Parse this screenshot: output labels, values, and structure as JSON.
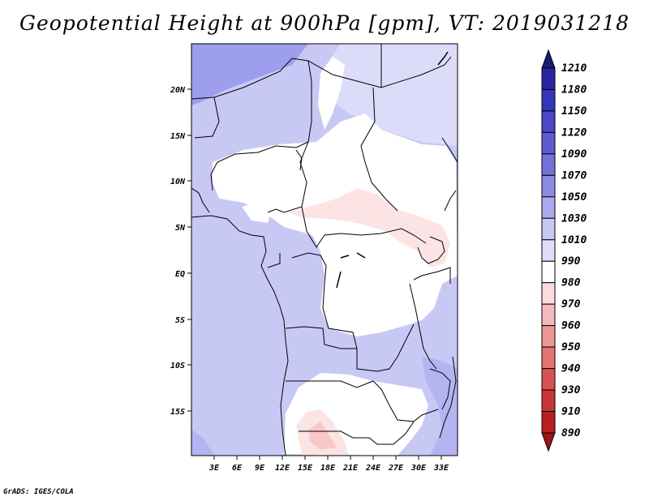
{
  "title": "Geopotential Height at 900hPa [gpm], VT: 2019031218",
  "credit": "GrADS: IGES/COLA",
  "map": {
    "lat_labels": [
      "20N",
      "15N",
      "10N",
      "5N",
      "EQ",
      "5S",
      "10S",
      "15S"
    ],
    "lon_labels": [
      "3E",
      "6E",
      "9E",
      "12E",
      "15E",
      "18E",
      "21E",
      "24E",
      "27E",
      "30E",
      "33E"
    ]
  },
  "colorbar": {
    "labels": [
      "1210",
      "1180",
      "1150",
      "1120",
      "1090",
      "1070",
      "1050",
      "1030",
      "1010",
      "990",
      "980",
      "970",
      "960",
      "950",
      "940",
      "930",
      "910",
      "890"
    ],
    "colors": [
      "#1a1a7a",
      "#2626a0",
      "#3636bb",
      "#4848c8",
      "#5c5cd2",
      "#7272dc",
      "#8c8ce4",
      "#aaaaef",
      "#c8c8f5",
      "#dedefa",
      "#ffffff",
      "#fbdcdc",
      "#f6b9b9",
      "#ee9696",
      "#e47474",
      "#d85252",
      "#c83636",
      "#b82020",
      "#a01414"
    ],
    "colors_note": "top arrow through bottom arrow"
  },
  "field_colors": {
    "very_high": "#9e9eee",
    "high": "#b4b4f2",
    "mid": "#c8c8f5",
    "light": "#dcdcfa",
    "neutral": "#ffffff",
    "low": "#fde4e4",
    "lower": "#f8c8c8"
  }
}
